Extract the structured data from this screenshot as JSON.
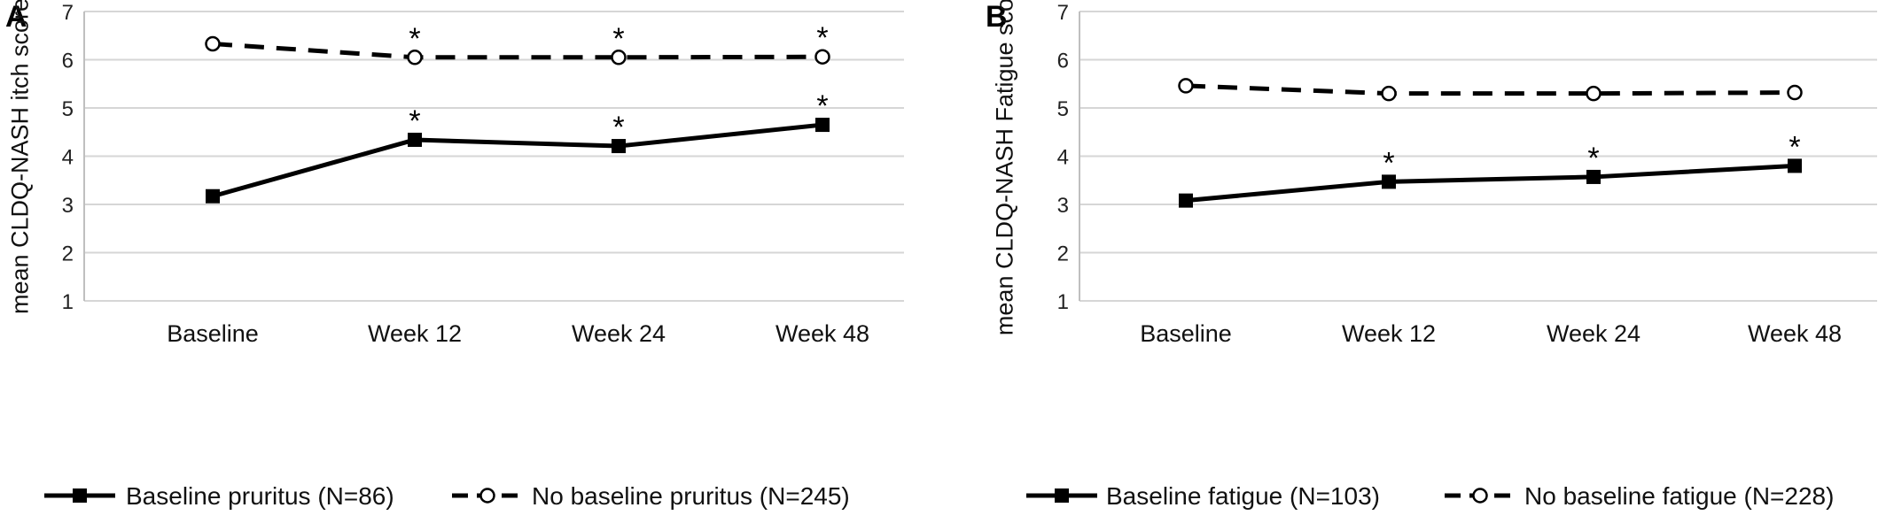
{
  "chart_data": [
    {
      "type": "line",
      "panel_label": "A",
      "title": "",
      "xlabel": "",
      "ylabel": "mean CLDQ-NASH itch score",
      "ylim": [
        1,
        7
      ],
      "yticks": [
        1,
        2,
        3,
        4,
        5,
        6,
        7
      ],
      "grid": true,
      "legend_position": "bottom",
      "categories": [
        "Baseline",
        "Week 12",
        "Week 24",
        "Week 48"
      ],
      "series": [
        {
          "name": "Baseline pruritus (N=86)",
          "values": [
            3.17,
            4.34,
            4.21,
            4.65
          ],
          "style": "solid",
          "marker": "filled-square",
          "significant": [
            false,
            true,
            true,
            true
          ],
          "color": "#000000"
        },
        {
          "name": "No baseline pruritus (N=245)",
          "values": [
            6.33,
            6.05,
            6.05,
            6.06
          ],
          "style": "dashed",
          "marker": "open-circle",
          "significant": [
            false,
            true,
            true,
            true
          ],
          "color": "#000000"
        }
      ],
      "annotation_symbol": "*"
    },
    {
      "type": "line",
      "panel_label": "B",
      "title": "",
      "xlabel": "",
      "ylabel": "mean CLDQ-NASH Fatigue score",
      "ylim": [
        1,
        7
      ],
      "yticks": [
        1,
        2,
        3,
        4,
        5,
        6,
        7
      ],
      "grid": true,
      "legend_position": "bottom",
      "categories": [
        "Baseline",
        "Week 12",
        "Week 24",
        "Week 48"
      ],
      "series": [
        {
          "name": "Baseline fatigue (N=103)",
          "values": [
            3.08,
            3.47,
            3.57,
            3.8
          ],
          "style": "solid",
          "marker": "filled-square",
          "significant": [
            false,
            true,
            true,
            true
          ],
          "color": "#000000"
        },
        {
          "name": "No baseline fatigue (N=228)",
          "values": [
            5.46,
            5.3,
            5.3,
            5.32
          ],
          "style": "dashed",
          "marker": "open-circle",
          "significant": [
            false,
            false,
            false,
            false
          ],
          "color": "#000000"
        }
      ],
      "annotation_symbol": "*"
    }
  ]
}
